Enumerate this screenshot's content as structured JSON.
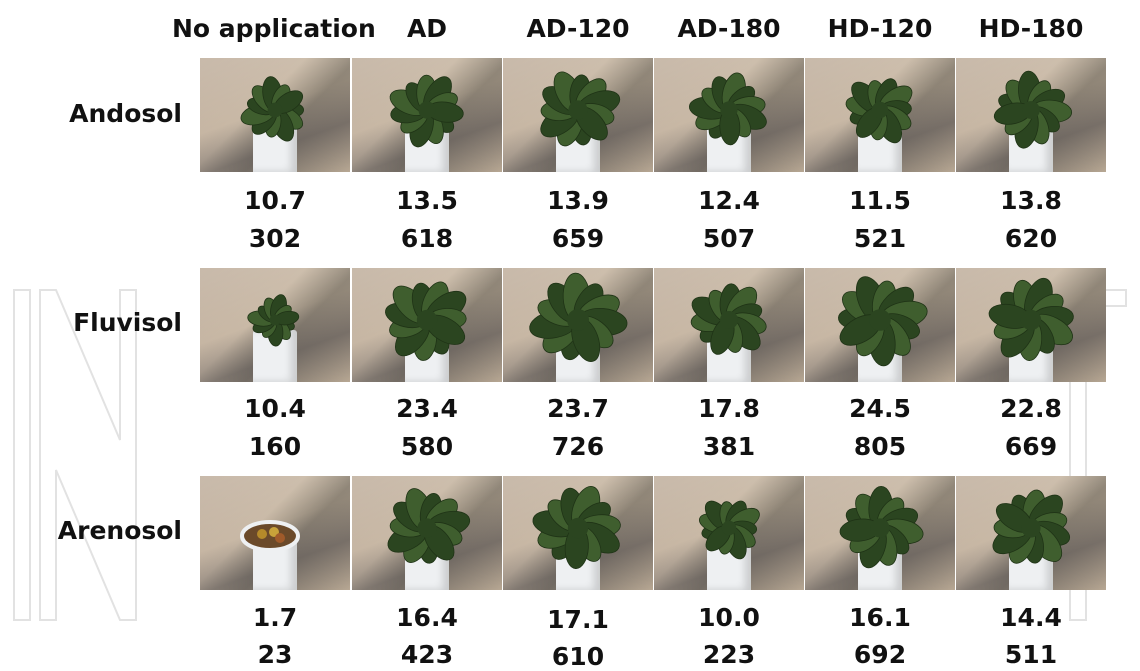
{
  "columns": [
    "No application",
    "AD",
    "AD-120",
    "AD-180",
    "HD-120",
    "HD-180"
  ],
  "rows": [
    {
      "soil": "Andosol",
      "values": [
        {
          "a": "10.7",
          "b": "302"
        },
        {
          "a": "13.5",
          "b": "618"
        },
        {
          "a": "13.9",
          "b": "659"
        },
        {
          "a": "12.4",
          "b": "507"
        },
        {
          "a": "11.5",
          "b": "521"
        },
        {
          "a": "13.8",
          "b": "620"
        }
      ]
    },
    {
      "soil": "Fluvisol",
      "values": [
        {
          "a": "10.4",
          "b": "160"
        },
        {
          "a": "23.4",
          "b": "580"
        },
        {
          "a": "23.7",
          "b": "726"
        },
        {
          "a": "17.8",
          "b": "381"
        },
        {
          "a": "24.5",
          "b": "805"
        },
        {
          "a": "22.8",
          "b": "669"
        }
      ]
    },
    {
      "soil": "Arenosol",
      "values": [
        {
          "a": "1.7",
          "b": "23"
        },
        {
          "a": "16.4",
          "b": "423"
        },
        {
          "a": "17.1",
          "b": "610"
        },
        {
          "a": "10.0",
          "b": "223"
        },
        {
          "a": "16.1",
          "b": "692"
        },
        {
          "a": "14.4",
          "b": "511"
        }
      ]
    }
  ],
  "plant_size": [
    [
      0.62,
      0.72,
      0.8,
      0.72,
      0.68,
      0.74
    ],
    [
      0.45,
      0.85,
      0.92,
      0.75,
      0.9,
      0.85
    ],
    [
      0.0,
      0.8,
      0.85,
      0.6,
      0.8,
      0.8
    ]
  ],
  "leaf_color": "#3f5e2e",
  "leaf_color_dark": "#2b4520"
}
